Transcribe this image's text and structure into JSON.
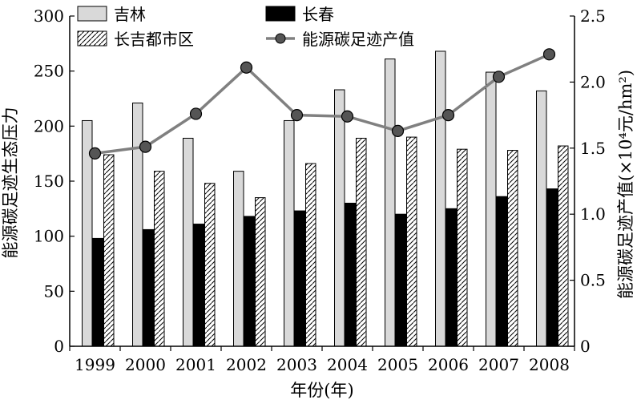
{
  "chart_data": {
    "type": "bar",
    "categories": [
      "1999",
      "2000",
      "2001",
      "2002",
      "2003",
      "2004",
      "2005",
      "2006",
      "2007",
      "2008"
    ],
    "series": [
      {
        "name": "吉林",
        "type": "bar",
        "axis": "left",
        "color": "#d9d9d9",
        "pattern": "solid",
        "values": [
          205,
          221,
          189,
          159,
          205,
          233,
          261,
          268,
          249,
          232
        ]
      },
      {
        "name": "长春",
        "type": "bar",
        "axis": "left",
        "color": "#000000",
        "pattern": "solid",
        "values": [
          98,
          106,
          111,
          118,
          123,
          130,
          120,
          125,
          136,
          143
        ]
      },
      {
        "name": "长吉都市区",
        "type": "bar",
        "axis": "left",
        "color": "#ffffff",
        "pattern": "hatched",
        "values": [
          174,
          159,
          148,
          135,
          166,
          189,
          190,
          179,
          178,
          182
        ]
      },
      {
        "name": "能源碳足迹产值",
        "type": "line",
        "axis": "right",
        "color": "#808080",
        "marker": "circle",
        "values": [
          1.46,
          1.51,
          1.76,
          2.11,
          1.75,
          1.74,
          1.63,
          1.75,
          2.04,
          2.21
        ]
      }
    ],
    "xlabel": "年份(年)",
    "ylabel": "能源碳足迹生态压力",
    "ylabel_right": "能源碳足迹产值(×10⁴元/hm²)",
    "ylim": [
      0,
      300
    ],
    "yticks": [
      0,
      50,
      100,
      150,
      200,
      250,
      300
    ],
    "ylim_right": [
      0,
      2.5
    ],
    "yticks_right": [
      "0",
      "0.5",
      "1.0",
      "1.5",
      "2.0",
      "2.5"
    ],
    "legend": "top",
    "grid": false
  }
}
